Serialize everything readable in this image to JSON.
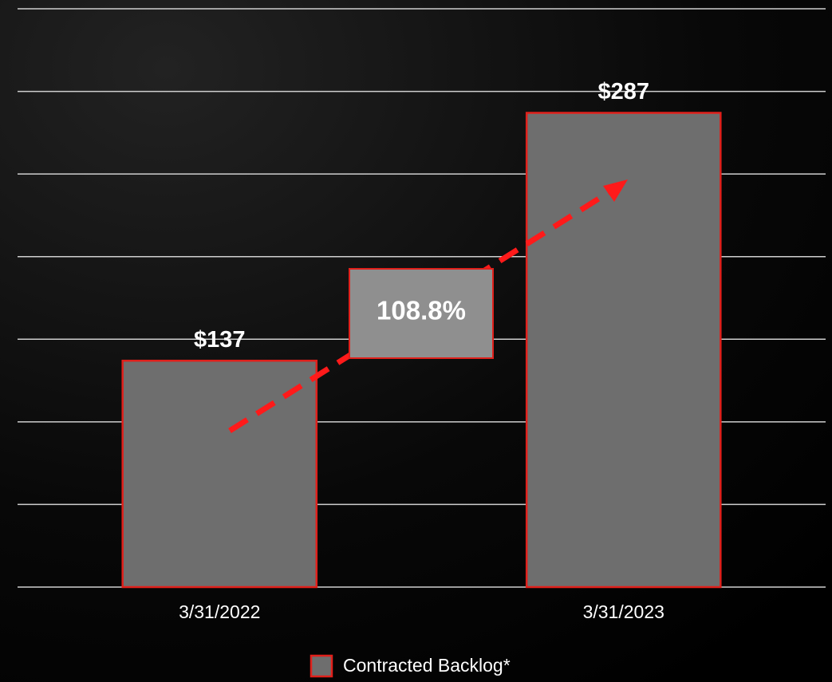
{
  "chart_data": {
    "type": "bar",
    "categories": [
      "3/31/2022",
      "3/31/2023"
    ],
    "series": [
      {
        "name": "Contracted Backlog*",
        "color": "#6e6e6e",
        "values": [
          137,
          287
        ],
        "value_labels": [
          "$137",
          "$287"
        ]
      }
    ],
    "annotations": [
      "108.8%"
    ],
    "ylim": [
      0,
      350
    ],
    "yticks": [
      0,
      50,
      100,
      150,
      200,
      250,
      300,
      350
    ],
    "grid": true,
    "legend": "bottom"
  }
}
